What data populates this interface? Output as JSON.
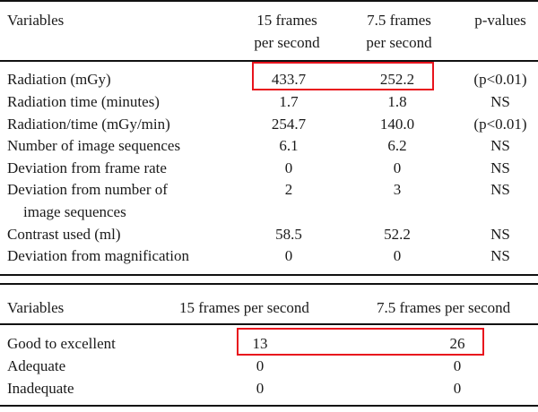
{
  "table1": {
    "headers": [
      "Variables",
      "15 frames per second",
      "7.5 frames per second",
      "p-values"
    ],
    "header_lines": {
      "col1": [
        "15 frames",
        "per second"
      ],
      "col2": [
        "7.5 frames",
        "per second"
      ]
    },
    "rows": [
      {
        "variable": "Radiation (mGy)",
        "fps15": "433.7",
        "fps7_5": "252.2",
        "p": "(p<0.01)"
      },
      {
        "variable": "Radiation time (minutes)",
        "fps15": "1.7",
        "fps7_5": "1.8",
        "p": "NS"
      },
      {
        "variable": "Radiation/time (mGy/min)",
        "fps15": "254.7",
        "fps7_5": "140.0",
        "p": "(p<0.01)"
      },
      {
        "variable": "Number of image sequences",
        "fps15": "6.1",
        "fps7_5": "6.2",
        "p": "NS"
      },
      {
        "variable": "Deviation from frame rate",
        "fps15": "0",
        "fps7_5": "0",
        "p": "NS"
      },
      {
        "variable_lines": [
          "Deviation from number of",
          "image sequences"
        ],
        "fps15": "2",
        "fps7_5": "3",
        "p": "NS"
      },
      {
        "variable": "Contrast used (ml)",
        "fps15": "58.5",
        "fps7_5": "52.2",
        "p": "NS"
      },
      {
        "variable": "Deviation from magnification",
        "fps15": "0",
        "fps7_5": "0",
        "p": "NS"
      }
    ],
    "highlight": "Radiation (mGy) values"
  },
  "table2": {
    "headers": [
      "Variables",
      "15 frames per second",
      "7.5 frames per second"
    ],
    "rows": [
      {
        "variable": "Good to excellent",
        "fps15": "13",
        "fps7_5": "26"
      },
      {
        "variable": "Adequate",
        "fps15": "0",
        "fps7_5": "0"
      },
      {
        "variable": "Inadequate",
        "fps15": "0",
        "fps7_5": "0"
      }
    ]
  },
  "colors": {
    "rule": "#111111",
    "highlight": "#e8141d"
  }
}
